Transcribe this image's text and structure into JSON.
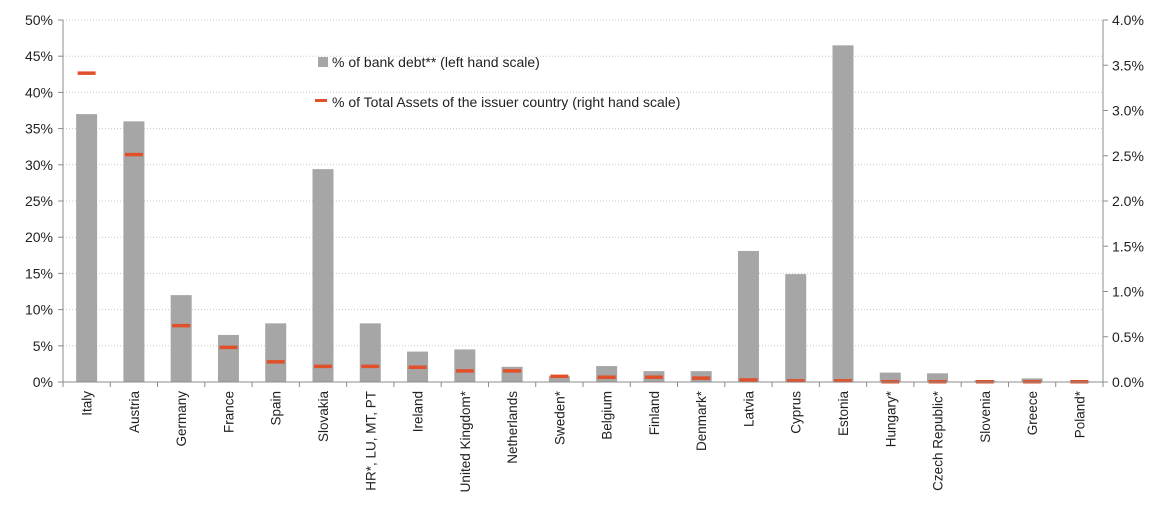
{
  "chart_data": {
    "type": "bar",
    "categories": [
      "Italy",
      "Austria",
      "Germany",
      "France",
      "Spain",
      "Slovakia",
      "HR*, LU, MT, PT",
      "Ireland",
      "United Kingdom*",
      "Netherlands",
      "Sweden*",
      "Belgium",
      "Finland",
      "Denmark*",
      "Latvia",
      "Cyprus",
      "Estonia",
      "Hungary*",
      "Czech Republic*",
      "Slovenia",
      "Greece",
      "Poland*"
    ],
    "left_axis": {
      "ylim": [
        0,
        0.5
      ],
      "ticks": [
        0,
        0.05,
        0.1,
        0.15,
        0.2,
        0.25,
        0.3,
        0.35,
        0.4,
        0.45,
        0.5
      ],
      "tick_labels": [
        "0%",
        "5%",
        "10%",
        "15%",
        "20%",
        "25%",
        "30%",
        "35%",
        "40%",
        "45%",
        "50%"
      ]
    },
    "right_axis": {
      "ylim": [
        0,
        0.04
      ],
      "ticks": [
        0,
        0.005,
        0.01,
        0.015,
        0.02,
        0.025,
        0.03,
        0.035,
        0.04
      ],
      "tick_labels": [
        "0.0%",
        "0.5%",
        "1.0%",
        "1.5%",
        "2.0%",
        "2.5%",
        "3.0%",
        "3.5%",
        "4.0%"
      ]
    },
    "series": [
      {
        "name": "% of bank debt** (left hand scale)",
        "type": "bar",
        "axis": "left",
        "color": "#a6a6a6",
        "values": [
          0.37,
          0.36,
          0.12,
          0.065,
          0.081,
          0.294,
          0.081,
          0.042,
          0.045,
          0.021,
          0.008,
          0.022,
          0.015,
          0.015,
          0.181,
          0.149,
          0.465,
          0.013,
          0.012,
          0.002,
          0.005,
          0.001
        ]
      },
      {
        "name": "% of Total Assets of the issuer country (right hand scale)",
        "type": "marker",
        "axis": "right",
        "color": "#e0502a",
        "values": [
          0.0341,
          0.0251,
          0.0062,
          0.0038,
          0.0022,
          0.0017,
          0.0017,
          0.0016,
          0.0012,
          0.0012,
          0.0006,
          0.0005,
          0.0005,
          0.0004,
          0.0002,
          0.0001,
          0.0001,
          0.0,
          0.0,
          0.0,
          0.0,
          0.0
        ]
      }
    ],
    "legend_position": "top-center",
    "grid": "horizontal dotted"
  }
}
